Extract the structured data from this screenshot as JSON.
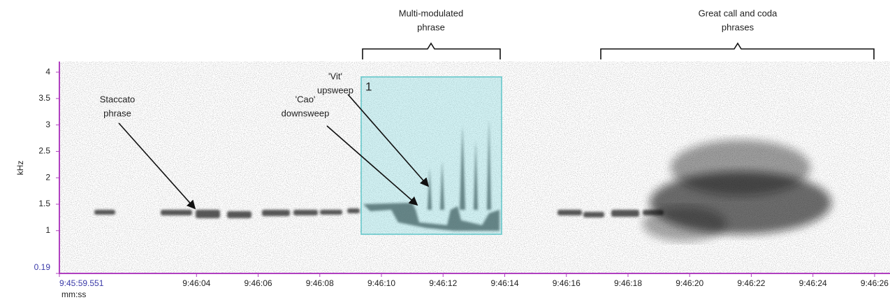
{
  "chart_data": {
    "type": "spectrogram",
    "x_label": "mm:ss",
    "y_label": "kHz",
    "xlim": [
      59.551,
      86.5
    ],
    "xticks": [
      {
        "value": 59.551,
        "label": "9:45:59.551"
      },
      {
        "value": 64,
        "label": "9:46:04"
      },
      {
        "value": 66,
        "label": "9:46:06"
      },
      {
        "value": 68,
        "label": "9:46:08"
      },
      {
        "value": 70,
        "label": "9:46:10"
      },
      {
        "value": 72,
        "label": "9:46:12"
      },
      {
        "value": 74,
        "label": "9:46:14"
      },
      {
        "value": 76,
        "label": "9:46:16"
      },
      {
        "value": 78,
        "label": "9:46:18"
      },
      {
        "value": 80,
        "label": "9:46:20"
      },
      {
        "value": 82,
        "label": "9:46:22"
      },
      {
        "value": 84,
        "label": "9:46:24"
      },
      {
        "value": 86,
        "label": "9:46:26"
      }
    ],
    "ylim": [
      0.19,
      4.2
    ],
    "yticks": [
      0.19,
      1,
      1.5,
      2,
      2.5,
      3,
      3.5,
      4
    ],
    "selection_label": "1",
    "annotations": [
      {
        "lines": [
          "Multi-modulated",
          "phrase"
        ]
      },
      {
        "lines": [
          "Great call and coda",
          "phrases"
        ]
      },
      {
        "lines": [
          "Staccato",
          "phrase"
        ]
      },
      {
        "lines": [
          "'Cao'",
          "downsweep"
        ]
      },
      {
        "lines": [
          "'Vit'",
          "upsweep"
        ]
      }
    ]
  }
}
